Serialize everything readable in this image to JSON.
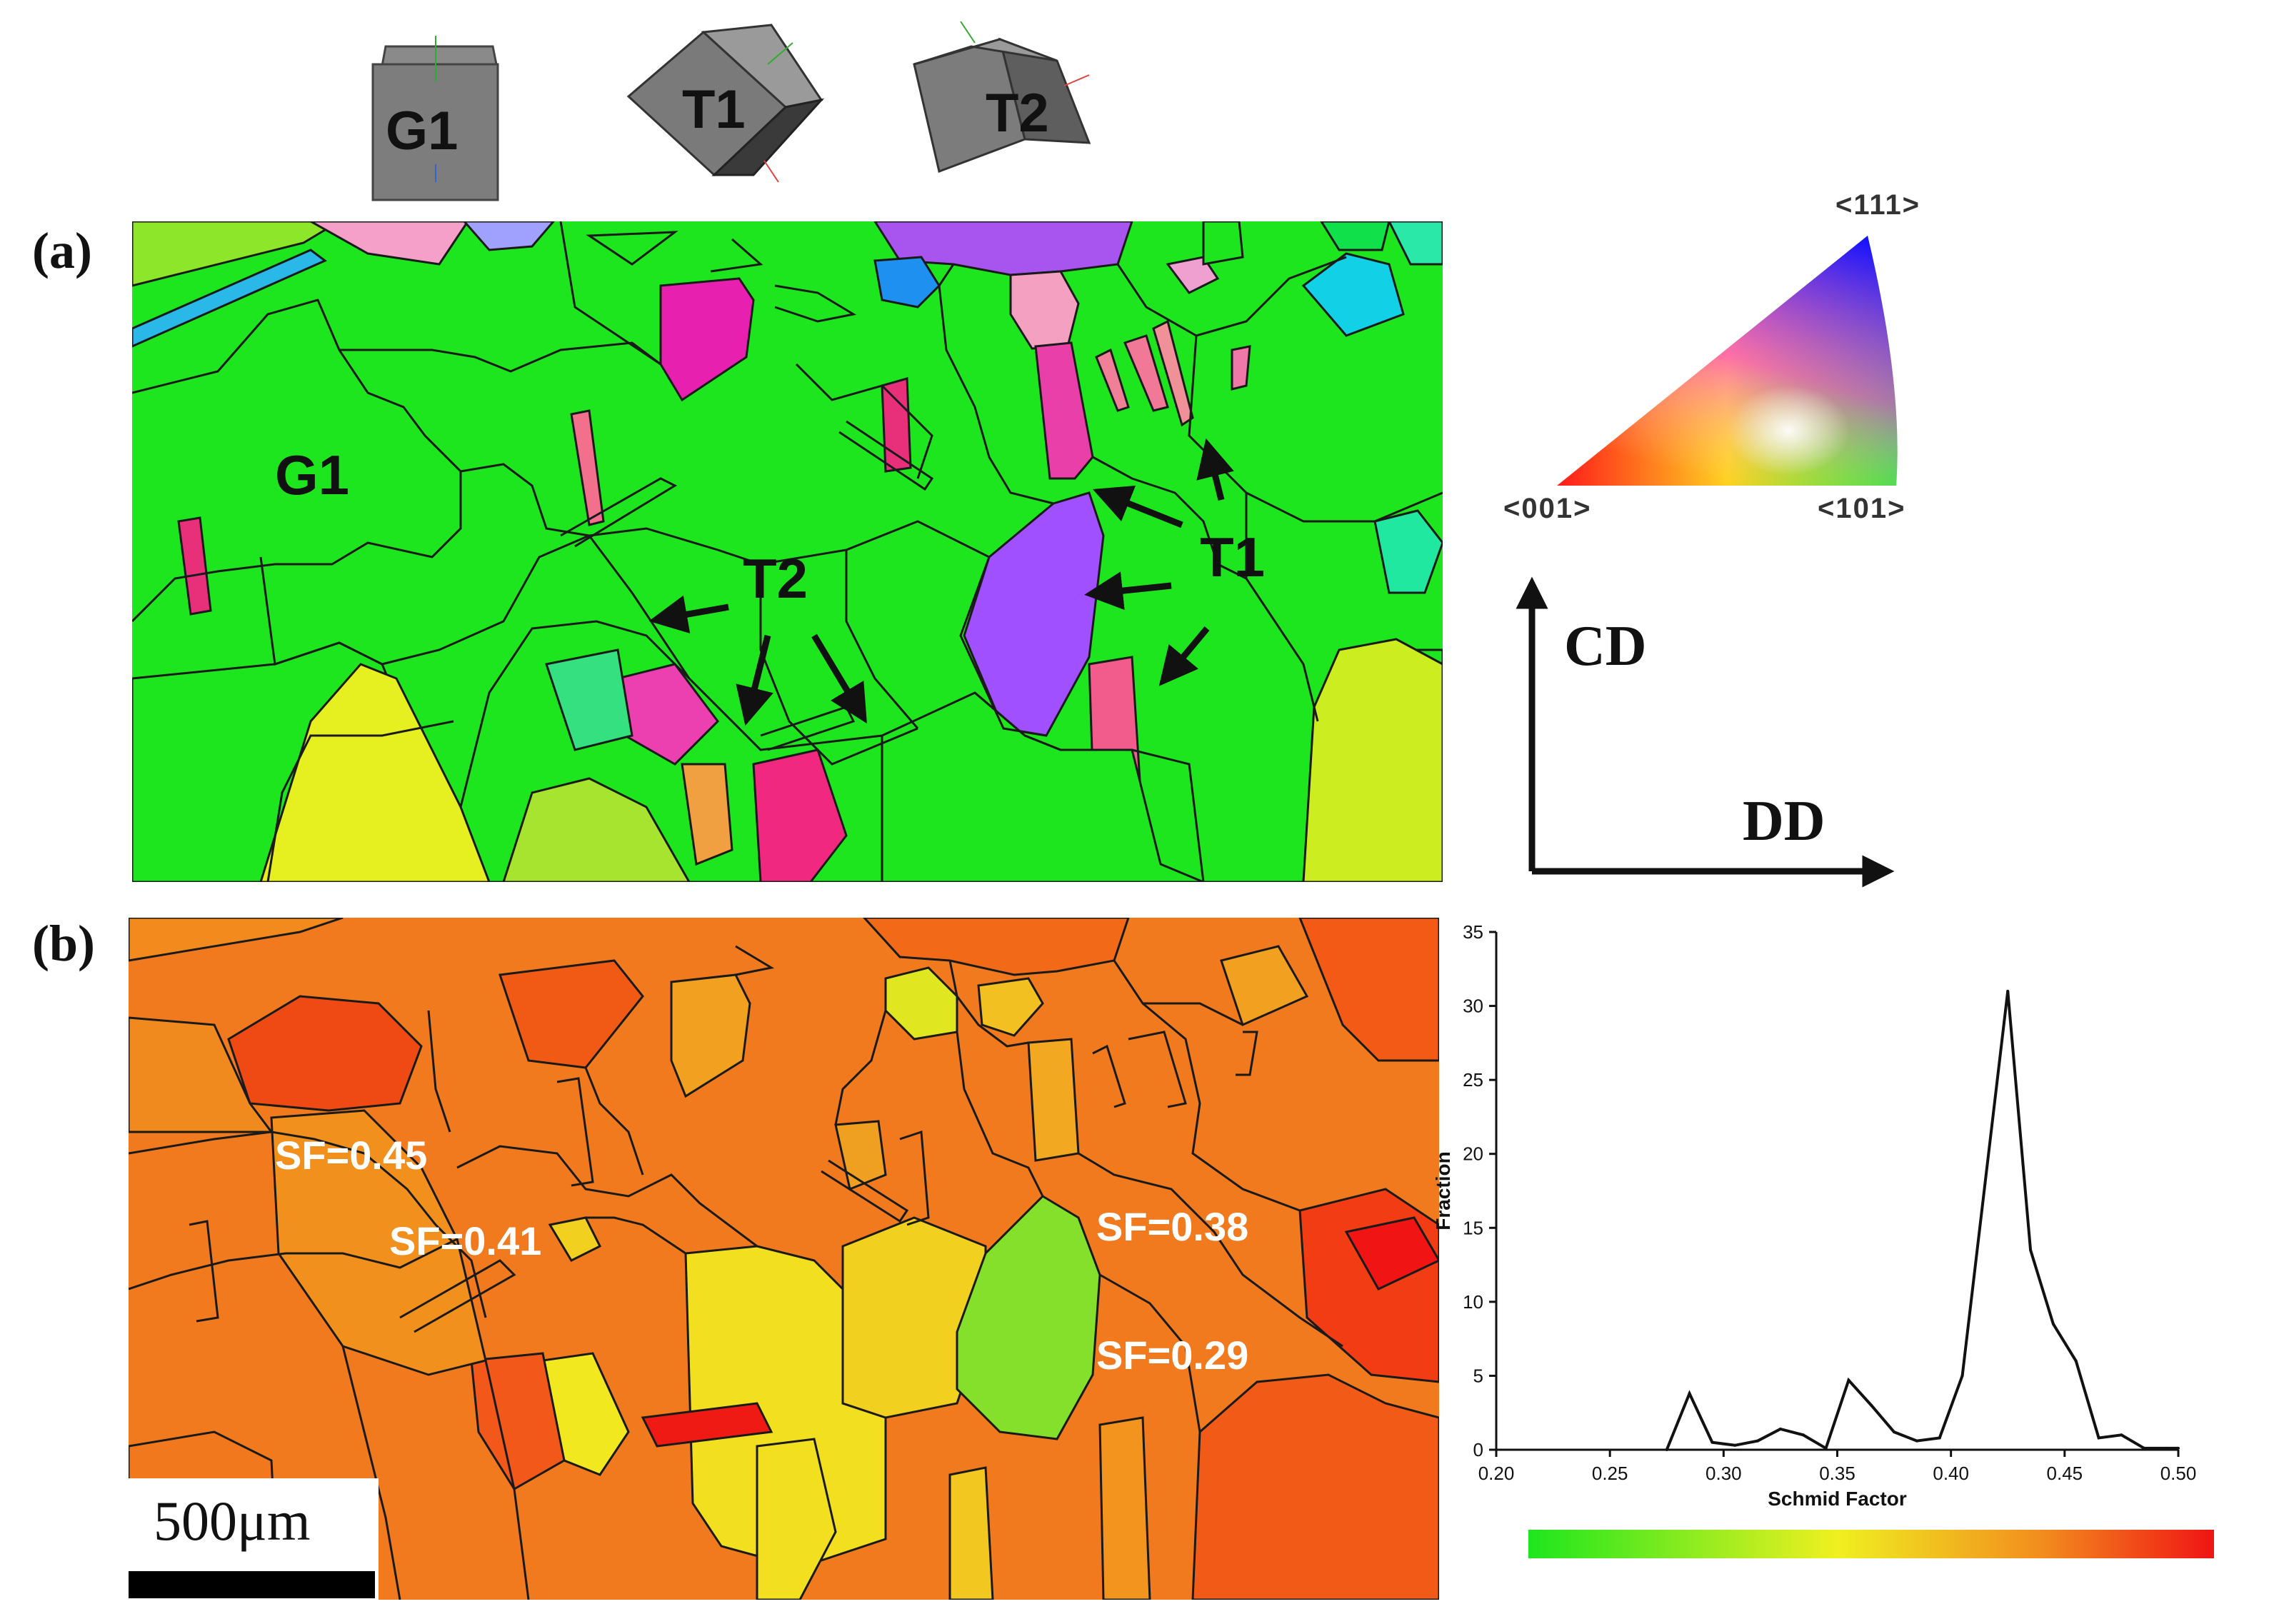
{
  "cubes": [
    {
      "label": "G1"
    },
    {
      "label": "T1"
    },
    {
      "label": "T2"
    }
  ],
  "panels": {
    "a": {
      "label": "(a)",
      "grain_label": "G1",
      "twin1_label": "T1",
      "twin2_label": "T2"
    },
    "b": {
      "label": "(b)",
      "sf_labels": [
        "SF=0.45",
        "SF=0.41",
        "SF=0.38",
        "SF=0.29"
      ],
      "scale_bar": "500μm"
    }
  },
  "ipf_triangle": {
    "top": "<111>",
    "left": "<001>",
    "right": "<101>"
  },
  "axes": {
    "vertical": "CD",
    "horizontal": "DD"
  },
  "colors": {
    "grain_green": "#1ee61e",
    "twin_pink": "#e8307a",
    "twin_violet": "#a050ff",
    "yellow": "#e6f020",
    "orange_map": "#f27a1e",
    "red_map": "#f23c14"
  },
  "chart_data": {
    "type": "line",
    "xlabel": "Schmid Factor",
    "ylabel": "Fraction",
    "xlim": [
      0.2,
      0.5
    ],
    "ylim": [
      0,
      35
    ],
    "xticks": [
      "0.20",
      "0.25",
      "0.30",
      "0.35",
      "0.40",
      "0.45",
      "0.50"
    ],
    "yticks": [
      "0",
      "5",
      "10",
      "15",
      "20",
      "25",
      "30",
      "35"
    ],
    "x": [
      0.275,
      0.285,
      0.295,
      0.305,
      0.315,
      0.325,
      0.335,
      0.345,
      0.355,
      0.365,
      0.375,
      0.385,
      0.395,
      0.405,
      0.415,
      0.425,
      0.435,
      0.445,
      0.455,
      0.465,
      0.475,
      0.485,
      0.495,
      0.5
    ],
    "y": [
      0,
      3.8,
      0.5,
      0.3,
      0.6,
      1.4,
      1.0,
      0.1,
      4.7,
      3.0,
      1.2,
      0.6,
      0.8,
      5.0,
      18.0,
      31.0,
      13.5,
      8.5,
      6.0,
      0.8,
      1.0,
      0.1,
      0.1,
      0.1
    ],
    "colorbar": [
      "#1ee61e",
      "#f0f020",
      "#f28c1e",
      "#f01414"
    ]
  }
}
